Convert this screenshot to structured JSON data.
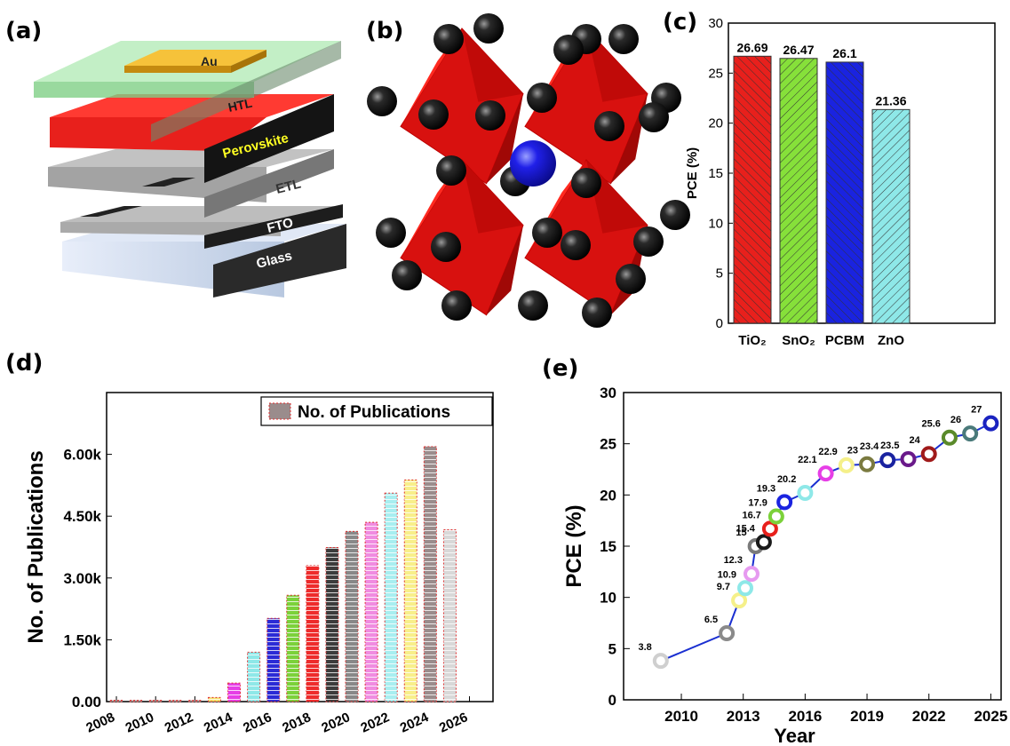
{
  "panel_labels": {
    "a": "(a)",
    "b": "(b)",
    "c": "(c)",
    "d": "(d)",
    "e": "(e)"
  },
  "device_layers": {
    "au": "Au",
    "htl": "HTL",
    "perovskite": "Perovskite",
    "etl": "ETL",
    "fto": "FTO",
    "glass": "Glass"
  },
  "colors": {
    "perovskite": "#e8201c",
    "octahedron": "#d8110f",
    "b_site_sphere": "#1010e0",
    "x_site_sphere": "#0a0a0a",
    "au": "#f2b21f",
    "htl": "#9fe0a4",
    "line_e": "#1a2fd1"
  },
  "chart_data": [
    {
      "id": "c",
      "type": "bar",
      "categories": [
        "TiO₂",
        "SnO₂",
        "PCBM",
        "ZnO"
      ],
      "values": [
        26.69,
        26.47,
        26.1,
        21.36
      ],
      "value_labels": [
        "26.69",
        "26.47",
        "26.1",
        "21.36"
      ],
      "colors": [
        "#e8201c",
        "#86e03a",
        "#1a23e0",
        "#8ee8e8"
      ],
      "title": "",
      "xlabel": "",
      "ylabel": "PCE (%)",
      "ylim": [
        0,
        30
      ],
      "yticks": [
        "0",
        "5",
        "10",
        "15",
        "20",
        "25",
        "30"
      ],
      "grid": false
    },
    {
      "id": "d",
      "type": "bar",
      "x": [
        2008,
        2009,
        2010,
        2011,
        2012,
        2013,
        2014,
        2015,
        2016,
        2017,
        2018,
        2019,
        2020,
        2021,
        2022,
        2023,
        2024,
        2025
      ],
      "values": [
        5,
        10,
        15,
        20,
        25,
        100,
        450,
        1200,
        2020,
        2580,
        3300,
        3740,
        4130,
        4350,
        5060,
        5380,
        6190,
        4170
      ],
      "colors": [
        "#9e9e9e",
        "#9e9e9e",
        "#9e9e9e",
        "#9e9e9e",
        "#9e9e9e",
        "#f5e16a",
        "#e63ee6",
        "#8ee8e8",
        "#2b2bd6",
        "#7bd13a",
        "#ee2b2b",
        "#3c3c3c",
        "#888888",
        "#f08be0",
        "#a8eef0",
        "#f8ef8a",
        "#9a8c8c",
        "#d8d8d8"
      ],
      "title": "",
      "xlabel": "",
      "ylabel": "No. of Publications",
      "ylim": [
        0,
        7500
      ],
      "yticks": [
        "0.00",
        "1.50k",
        "3.00k",
        "4.50k",
        "6.00k"
      ],
      "xticks": [
        "2008",
        "2010",
        "2012",
        "2014",
        "2016",
        "2018",
        "2020",
        "2022",
        "2024",
        "2026"
      ],
      "legend": {
        "label": "No. of Publications",
        "position": "top-right"
      },
      "grid": false
    },
    {
      "id": "e",
      "type": "line",
      "x": [
        2009,
        2012.2,
        2012.8,
        2013.1,
        2013.4,
        2013.6,
        2014,
        2014.3,
        2014.6,
        2015,
        2016,
        2017,
        2018,
        2019,
        2020,
        2021,
        2022,
        2023,
        2024,
        2025
      ],
      "values": [
        3.8,
        6.5,
        9.7,
        10.9,
        12.3,
        15,
        15.4,
        16.7,
        17.9,
        19.3,
        20.2,
        22.1,
        22.9,
        23,
        23.4,
        23.5,
        24,
        25.6,
        26,
        27
      ],
      "value_labels": [
        "3.8",
        "6.5",
        "9.7",
        "10.9",
        "12.3",
        "15",
        "15.4",
        "16.7",
        "17.9",
        "19.3",
        "20.2",
        "22.1",
        "22.9",
        "23",
        "23.4",
        "23.5",
        "24",
        "25.6",
        "26",
        "27"
      ],
      "marker_colors": [
        "#cfcfcf",
        "#8a8a8a",
        "#f5f08a",
        "#8ee8e8",
        "#e69af0",
        "#7a7a7a",
        "#1a1a1a",
        "#e8201c",
        "#7bd13a",
        "#1a23e0",
        "#8ee8e8",
        "#e63ee6",
        "#f5f08a",
        "#7a7a40",
        "#1a23a0",
        "#6a1a8a",
        "#a01a1a",
        "#5a8a2a",
        "#4a7a7a",
        "#1a23c0"
      ],
      "title": "",
      "xlabel": "Year",
      "ylabel": "PCE (%)",
      "xlim": [
        2007.2,
        2025.5
      ],
      "ylim": [
        0,
        30
      ],
      "xticks": [
        "2010",
        "2013",
        "2016",
        "2019",
        "2022",
        "2025"
      ],
      "yticks": [
        "0",
        "5",
        "10",
        "15",
        "20",
        "25",
        "30"
      ],
      "grid": false
    }
  ]
}
